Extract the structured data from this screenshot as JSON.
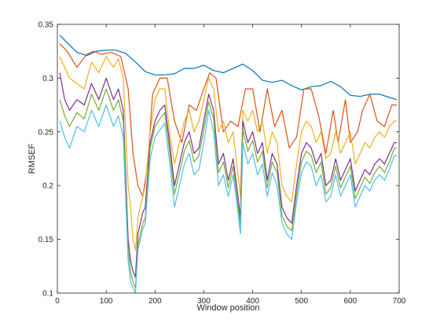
{
  "chart_data": {
    "type": "line",
    "title": "",
    "xlabel": "Window position",
    "ylabel": "RMSEF",
    "xlim": [
      0,
      700
    ],
    "ylim": [
      0.1,
      0.35
    ],
    "xticks": [
      0,
      100,
      200,
      300,
      400,
      500,
      600,
      700
    ],
    "xtick_labels": [
      "0",
      "100",
      "200",
      "300",
      "400",
      "500",
      "600",
      "700"
    ],
    "yticks": [
      0.1,
      0.15,
      0.2,
      0.25,
      0.3,
      0.35
    ],
    "ytick_labels": [
      "0.1",
      "0.15",
      "0.2",
      "0.25",
      "0.3",
      "0.35"
    ],
    "grid": false,
    "legend": "none",
    "series": [
      {
        "color": "#0072BD",
        "x": [
          5,
          20,
          40,
          60,
          80,
          100,
          120,
          140,
          160,
          180,
          200,
          220,
          240,
          260,
          280,
          300,
          320,
          340,
          360,
          380,
          400,
          420,
          440,
          460,
          480,
          500,
          520,
          540,
          560,
          580,
          600,
          620,
          640,
          660,
          680,
          695
        ],
        "y": [
          0.34,
          0.333,
          0.324,
          0.321,
          0.325,
          0.326,
          0.326,
          0.323,
          0.315,
          0.306,
          0.303,
          0.303,
          0.304,
          0.309,
          0.309,
          0.312,
          0.307,
          0.305,
          0.309,
          0.313,
          0.307,
          0.298,
          0.296,
          0.298,
          0.293,
          0.289,
          0.292,
          0.293,
          0.297,
          0.292,
          0.284,
          0.283,
          0.285,
          0.285,
          0.282,
          0.28
        ]
      },
      {
        "color": "#D95319",
        "x": [
          5,
          20,
          40,
          60,
          75,
          90,
          110,
          130,
          145,
          155,
          165,
          175,
          185,
          195,
          210,
          225,
          240,
          255,
          270,
          285,
          300,
          312,
          325,
          340,
          355,
          370,
          385,
          400,
          415,
          430,
          445,
          460,
          475,
          490,
          505,
          520,
          535,
          550,
          565,
          575,
          590,
          600,
          615,
          625,
          640,
          655,
          670,
          685,
          695
        ],
        "y": [
          0.332,
          0.325,
          0.31,
          0.322,
          0.325,
          0.322,
          0.324,
          0.32,
          0.29,
          0.23,
          0.2,
          0.19,
          0.22,
          0.285,
          0.3,
          0.3,
          0.26,
          0.24,
          0.275,
          0.27,
          0.29,
          0.305,
          0.3,
          0.25,
          0.26,
          0.255,
          0.29,
          0.29,
          0.25,
          0.29,
          0.255,
          0.27,
          0.235,
          0.245,
          0.29,
          0.29,
          0.265,
          0.23,
          0.27,
          0.24,
          0.28,
          0.24,
          0.25,
          0.27,
          0.285,
          0.26,
          0.255,
          0.275,
          0.275
        ]
      },
      {
        "color": "#EDB120",
        "x": [
          5,
          15,
          25,
          40,
          55,
          70,
          85,
          100,
          115,
          125,
          135,
          145,
          150,
          155,
          160,
          165,
          170,
          175,
          180,
          190,
          200,
          210,
          220,
          230,
          240,
          250,
          260,
          270,
          280,
          290,
          300,
          310,
          320,
          330,
          340,
          350,
          360,
          370,
          375,
          380,
          390,
          400,
          410,
          420,
          430,
          440,
          450,
          460,
          470,
          480,
          490,
          500,
          510,
          520,
          530,
          540,
          550,
          560,
          570,
          580,
          590,
          600,
          610,
          620,
          630,
          640,
          650,
          660,
          670,
          680,
          690,
          695
        ],
        "y": [
          0.32,
          0.31,
          0.3,
          0.295,
          0.29,
          0.315,
          0.305,
          0.32,
          0.31,
          0.318,
          0.3,
          0.2,
          0.18,
          0.15,
          0.14,
          0.17,
          0.18,
          0.19,
          0.2,
          0.25,
          0.28,
          0.29,
          0.29,
          0.25,
          0.22,
          0.24,
          0.26,
          0.27,
          0.25,
          0.26,
          0.28,
          0.3,
          0.29,
          0.25,
          0.26,
          0.24,
          0.25,
          0.21,
          0.19,
          0.27,
          0.26,
          0.27,
          0.25,
          0.26,
          0.23,
          0.25,
          0.24,
          0.2,
          0.19,
          0.185,
          0.22,
          0.25,
          0.26,
          0.255,
          0.24,
          0.25,
          0.225,
          0.23,
          0.25,
          0.23,
          0.24,
          0.25,
          0.22,
          0.23,
          0.24,
          0.235,
          0.245,
          0.25,
          0.245,
          0.255,
          0.26,
          0.26
        ]
      },
      {
        "color": "#7E2F8E",
        "x": [
          5,
          15,
          25,
          40,
          55,
          70,
          85,
          100,
          115,
          125,
          135,
          145,
          150,
          155,
          160,
          165,
          170,
          175,
          180,
          190,
          200,
          210,
          220,
          230,
          240,
          250,
          260,
          270,
          280,
          290,
          300,
          310,
          320,
          330,
          340,
          350,
          360,
          370,
          375,
          380,
          390,
          400,
          410,
          420,
          430,
          440,
          450,
          460,
          470,
          480,
          490,
          500,
          510,
          520,
          530,
          540,
          550,
          560,
          570,
          580,
          590,
          600,
          610,
          620,
          630,
          640,
          650,
          660,
          670,
          680,
          690,
          695
        ],
        "y": [
          0.305,
          0.28,
          0.27,
          0.28,
          0.275,
          0.295,
          0.28,
          0.3,
          0.28,
          0.29,
          0.27,
          0.15,
          0.13,
          0.12,
          0.115,
          0.155,
          0.165,
          0.175,
          0.18,
          0.24,
          0.26,
          0.27,
          0.275,
          0.24,
          0.2,
          0.22,
          0.24,
          0.25,
          0.23,
          0.235,
          0.26,
          0.285,
          0.27,
          0.22,
          0.23,
          0.205,
          0.225,
          0.19,
          0.17,
          0.26,
          0.24,
          0.25,
          0.23,
          0.24,
          0.205,
          0.23,
          0.22,
          0.18,
          0.17,
          0.165,
          0.2,
          0.23,
          0.24,
          0.235,
          0.22,
          0.23,
          0.2,
          0.205,
          0.225,
          0.205,
          0.215,
          0.225,
          0.195,
          0.205,
          0.215,
          0.21,
          0.22,
          0.225,
          0.22,
          0.23,
          0.24,
          0.24
        ]
      },
      {
        "color": "#77AC30",
        "x": [
          5,
          15,
          25,
          40,
          55,
          70,
          85,
          100,
          115,
          125,
          135,
          145,
          150,
          155,
          160,
          165,
          170,
          175,
          180,
          190,
          200,
          210,
          220,
          230,
          240,
          250,
          260,
          270,
          280,
          290,
          300,
          310,
          320,
          330,
          340,
          350,
          360,
          370,
          375,
          380,
          390,
          400,
          410,
          420,
          430,
          440,
          450,
          460,
          470,
          480,
          490,
          500,
          510,
          520,
          530,
          540,
          550,
          560,
          570,
          580,
          590,
          600,
          610,
          620,
          630,
          640,
          650,
          660,
          670,
          680,
          690,
          695
        ],
        "y": [
          0.28,
          0.265,
          0.255,
          0.268,
          0.262,
          0.285,
          0.27,
          0.29,
          0.27,
          0.28,
          0.26,
          0.14,
          0.12,
          0.11,
          0.105,
          0.145,
          0.155,
          0.165,
          0.17,
          0.235,
          0.255,
          0.262,
          0.268,
          0.232,
          0.192,
          0.212,
          0.232,
          0.242,
          0.222,
          0.228,
          0.252,
          0.278,
          0.262,
          0.212,
          0.222,
          0.198,
          0.218,
          0.182,
          0.162,
          0.252,
          0.232,
          0.242,
          0.222,
          0.232,
          0.198,
          0.222,
          0.212,
          0.172,
          0.162,
          0.158,
          0.192,
          0.222,
          0.232,
          0.228,
          0.212,
          0.222,
          0.192,
          0.198,
          0.218,
          0.198,
          0.208,
          0.218,
          0.188,
          0.198,
          0.208,
          0.202,
          0.212,
          0.218,
          0.212,
          0.222,
          0.235,
          0.235
        ]
      },
      {
        "color": "#4DBEEE",
        "x": [
          5,
          15,
          25,
          40,
          55,
          70,
          85,
          100,
          115,
          125,
          135,
          145,
          150,
          155,
          160,
          165,
          170,
          175,
          180,
          190,
          200,
          210,
          220,
          230,
          240,
          250,
          260,
          270,
          280,
          290,
          300,
          310,
          320,
          330,
          340,
          350,
          360,
          370,
          375,
          380,
          390,
          400,
          410,
          420,
          430,
          440,
          450,
          460,
          470,
          480,
          490,
          500,
          510,
          520,
          530,
          540,
          550,
          560,
          570,
          580,
          590,
          600,
          610,
          620,
          630,
          640,
          650,
          660,
          670,
          680,
          690,
          695
        ],
        "y": [
          0.26,
          0.245,
          0.235,
          0.255,
          0.25,
          0.27,
          0.255,
          0.275,
          0.255,
          0.265,
          0.245,
          0.13,
          0.11,
          0.105,
          0.1,
          0.14,
          0.15,
          0.16,
          0.165,
          0.225,
          0.245,
          0.252,
          0.258,
          0.222,
          0.18,
          0.2,
          0.22,
          0.23,
          0.21,
          0.215,
          0.24,
          0.27,
          0.25,
          0.2,
          0.21,
          0.19,
          0.21,
          0.175,
          0.155,
          0.24,
          0.22,
          0.23,
          0.21,
          0.22,
          0.19,
          0.212,
          0.2,
          0.165,
          0.155,
          0.15,
          0.185,
          0.212,
          0.222,
          0.218,
          0.2,
          0.21,
          0.185,
          0.19,
          0.21,
          0.19,
          0.2,
          0.21,
          0.18,
          0.19,
          0.2,
          0.195,
          0.205,
          0.21,
          0.205,
          0.215,
          0.228,
          0.228
        ]
      }
    ]
  }
}
